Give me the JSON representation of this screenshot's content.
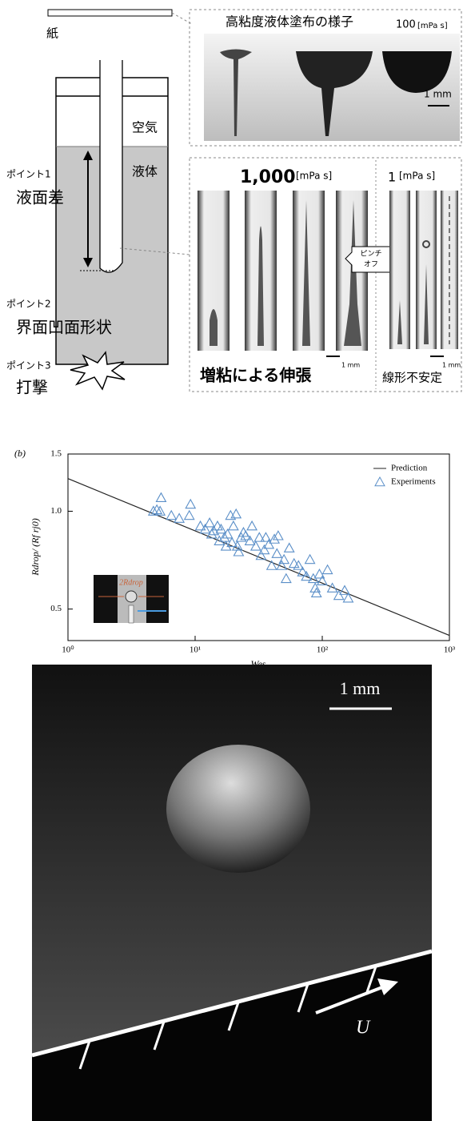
{
  "diagram": {
    "paper": "紙",
    "air": "空気",
    "liquid": "液体",
    "points": [
      {
        "tag": "ポイント1",
        "label": "液面差"
      },
      {
        "tag": "ポイント2",
        "label": "界面凹面形状"
      },
      {
        "tag": "ポイント3",
        "label": "打撃"
      }
    ]
  },
  "panels": {
    "top": {
      "title": "高粘度液体塗布の様子",
      "viscosity": "100",
      "unit": "[mPa s]",
      "scale": "1 mm"
    },
    "bottom": {
      "left_viscosity": "1,000",
      "left_unit": "[mPa s]",
      "right_viscosity": "1",
      "right_unit": "[mPa s]",
      "callout": [
        "ピンチ",
        "オフ"
      ],
      "left_scale": "1 mm",
      "right_scale": "1 mm",
      "left_caption": "増粘による伸張",
      "right_caption": "線形不安定"
    }
  },
  "chart_data": {
    "type": "scatter",
    "title": "(b)",
    "x_label": "Wes",
    "y_label": "Rdrop/ (Rf rj0)",
    "x_scale": "log",
    "y_scale": "log",
    "legend": "upper right",
    "annotations": [
      "2Rdrop"
    ],
    "xlim": [
      1,
      1000
    ],
    "ylim": [
      0.4,
      1.5
    ],
    "xticks": [
      {
        "value": 1,
        "label": "10⁰"
      },
      {
        "value": 10,
        "label": "10¹"
      },
      {
        "value": 100,
        "label": "10²"
      },
      {
        "value": 1000,
        "label": "10³"
      }
    ],
    "yticks": [
      0.5,
      {
        "value": 1.0,
        "label": "1.0"
      },
      1.5
    ],
    "series": [
      {
        "name": "Prediction",
        "marker": "line",
        "color": "#222222",
        "x": [
          1,
          1000
        ],
        "values": [
          1.26,
          0.415
        ]
      },
      {
        "name": "Experiments",
        "marker": "triangle",
        "color": "#5b8fc8",
        "x": [
          4.7,
          5.0,
          5.4,
          5.3,
          6.5,
          7.5,
          9,
          9.2,
          11,
          12,
          13,
          13.5,
          14,
          15,
          15.5,
          16,
          17,
          17.5,
          18,
          19,
          19.5,
          20,
          21,
          21.5,
          22,
          23,
          24,
          25,
          27,
          28,
          30,
          32,
          33,
          35,
          36,
          38,
          40,
          42,
          44,
          45,
          48,
          50,
          52,
          55,
          60,
          65,
          70,
          75,
          80,
          85,
          88,
          90,
          95,
          100,
          110,
          120,
          135,
          150,
          160
        ],
        "values": [
          1.0,
          1.01,
          1.1,
          1.0,
          0.97,
          0.95,
          0.97,
          1.05,
          0.9,
          0.88,
          0.92,
          0.85,
          0.87,
          0.9,
          0.81,
          0.88,
          0.83,
          0.78,
          0.85,
          0.97,
          0.8,
          0.9,
          0.98,
          0.78,
          0.75,
          0.83,
          0.86,
          0.84,
          0.81,
          0.9,
          0.78,
          0.83,
          0.73,
          0.76,
          0.83,
          0.79,
          0.68,
          0.82,
          0.74,
          0.84,
          0.68,
          0.71,
          0.62,
          0.77,
          0.69,
          0.68,
          0.65,
          0.63,
          0.71,
          0.62,
          0.58,
          0.56,
          0.64,
          0.61,
          0.66,
          0.58,
          0.55,
          0.57,
          0.54
        ]
      }
    ]
  },
  "photo": {
    "scale": "1 mm",
    "velocity": "U"
  }
}
